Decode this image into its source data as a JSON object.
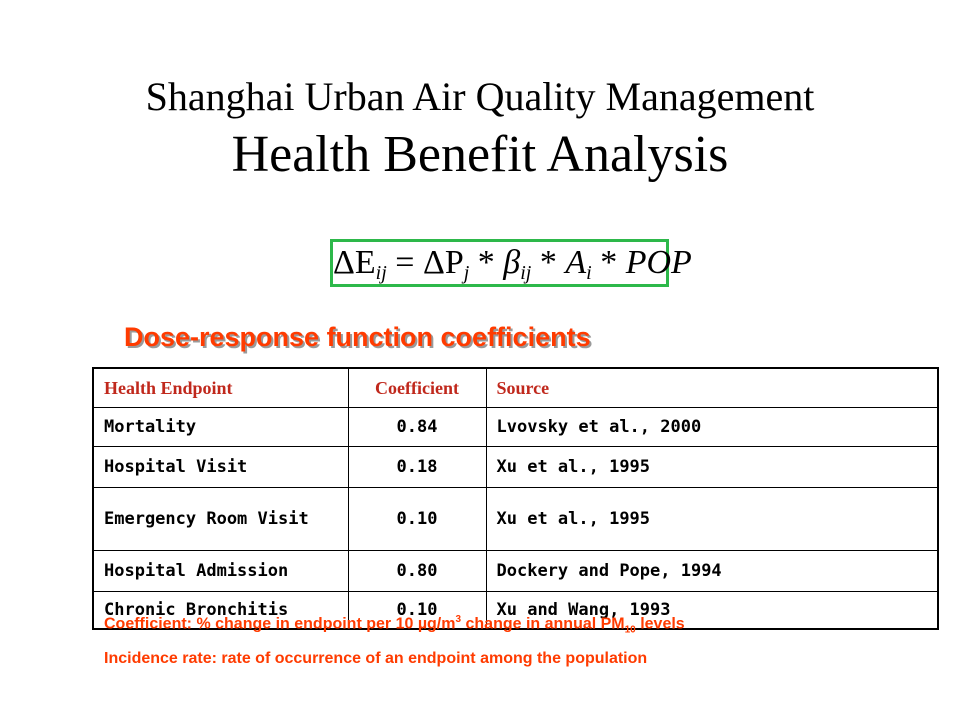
{
  "title": {
    "line1": "Shanghai Urban Air Quality Management",
    "line2": "Health Benefit Analysis"
  },
  "formula": {
    "lhs": "ΔE",
    "lhs_sub": "ij",
    "eq": " = ",
    "dp": "ΔP",
    "dp_sub": "j",
    "star1": " * ",
    "beta": "β",
    "beta_sub": "ij",
    "star2": " * ",
    "a": "A",
    "a_sub": "i",
    "star3": " * ",
    "pop": "POP"
  },
  "heading": "Dose-response function coefficients",
  "table": {
    "headers": [
      "Health Endpoint",
      "Coefficient",
      "Source"
    ],
    "rows": [
      {
        "endpoint": "Mortality",
        "coefficient": "0.84",
        "source": "Lvovsky et al., 2000"
      },
      {
        "endpoint": "Hospital Visit",
        "coefficient": "0.18",
        "source": "Xu et al., 1995"
      },
      {
        "endpoint": "Emergency Room Visit",
        "coefficient": "0.10",
        "source": "Xu et al., 1995"
      },
      {
        "endpoint": "Hospital Admission",
        "coefficient": "0.80",
        "source": "Dockery and Pope, 1994"
      },
      {
        "endpoint": "Chronic Bronchitis",
        "coefficient": "0.10",
        "source": "Xu and Wang, 1993"
      }
    ]
  },
  "notes": {
    "coefficient_pre": "Coefficient: % change in endpoint per 10 µg/m",
    "coefficient_sup": "3",
    "coefficient_mid": " change in annual PM",
    "coefficient_sub": "10",
    "coefficient_post": " levels",
    "incidence": "Incidence rate: rate of occurrence of an endpoint among the population"
  },
  "colors": {
    "accent": "#ff3b00",
    "header_text": "#c0281c",
    "formula_border": "#2db84a"
  }
}
